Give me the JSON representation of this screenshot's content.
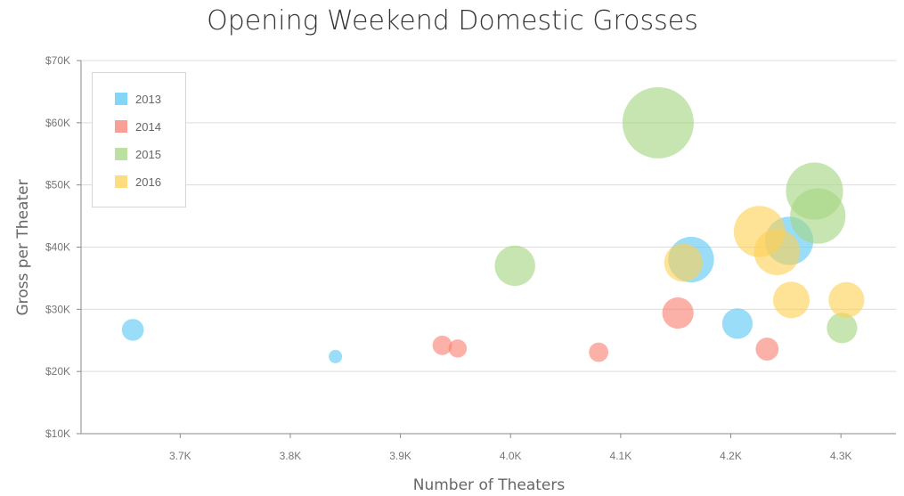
{
  "chart_data": {
    "type": "scatter",
    "variant": "bubble",
    "title": "Opening Weekend Domestic Grosses",
    "xlabel": "Number of Theaters",
    "ylabel": "Gross per Theater",
    "xlim": [
      3610,
      4350
    ],
    "ylim": [
      10000,
      70000
    ],
    "x_ticks": [
      {
        "value": 3700,
        "label": "3.7K"
      },
      {
        "value": 3800,
        "label": "3.8K"
      },
      {
        "value": 3900,
        "label": "3.9K"
      },
      {
        "value": 4000,
        "label": "4.0K"
      },
      {
        "value": 4100,
        "label": "4.1K"
      },
      {
        "value": 4200,
        "label": "4.2K"
      },
      {
        "value": 4300,
        "label": "4.3K"
      }
    ],
    "y_ticks": [
      {
        "value": 10000,
        "label": "$10K"
      },
      {
        "value": 20000,
        "label": "$20K"
      },
      {
        "value": 30000,
        "label": "$30K"
      },
      {
        "value": 40000,
        "label": "$40K"
      },
      {
        "value": 50000,
        "label": "$50K"
      },
      {
        "value": 60000,
        "label": "$60K"
      },
      {
        "value": 70000,
        "label": "$70K"
      }
    ],
    "grid": {
      "horizontal": true,
      "vertical": false
    },
    "legend": {
      "position": "top-left"
    },
    "series": [
      {
        "name": "2013",
        "color": "#5bc8f5",
        "points": [
          {
            "x": 3657,
            "y": 26700,
            "size": 0.08
          },
          {
            "x": 3841,
            "y": 22400,
            "size": 0.02
          },
          {
            "x": 4164,
            "y": 38000,
            "size": 0.4
          },
          {
            "x": 4206,
            "y": 27700,
            "size": 0.17
          },
          {
            "x": 4253,
            "y": 41000,
            "size": 0.45
          }
        ]
      },
      {
        "name": "2014",
        "color": "#f87f73",
        "points": [
          {
            "x": 3938,
            "y": 24200,
            "size": 0.06
          },
          {
            "x": 3952,
            "y": 23700,
            "size": 0.05
          },
          {
            "x": 4080,
            "y": 23100,
            "size": 0.06
          },
          {
            "x": 4152,
            "y": 29400,
            "size": 0.18
          },
          {
            "x": 4233,
            "y": 23600,
            "size": 0.09
          }
        ]
      },
      {
        "name": "2015",
        "color": "#a5d581",
        "points": [
          {
            "x": 4004,
            "y": 37000,
            "size": 0.31
          },
          {
            "x": 4134,
            "y": 60000,
            "size": 1.0
          },
          {
            "x": 4276,
            "y": 49000,
            "size": 0.64
          },
          {
            "x": 4279,
            "y": 45000,
            "size": 0.6
          },
          {
            "x": 4301,
            "y": 27000,
            "size": 0.17
          }
        ]
      },
      {
        "name": "2016",
        "color": "#fdd155",
        "points": [
          {
            "x": 4157,
            "y": 37500,
            "size": 0.28
          },
          {
            "x": 4226,
            "y": 42500,
            "size": 0.51
          },
          {
            "x": 4242,
            "y": 39200,
            "size": 0.41
          },
          {
            "x": 4255,
            "y": 31500,
            "size": 0.25
          },
          {
            "x": 4305,
            "y": 31500,
            "size": 0.24
          }
        ]
      }
    ]
  }
}
